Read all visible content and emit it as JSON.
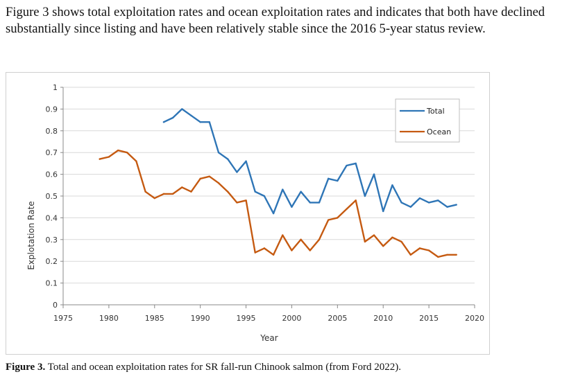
{
  "intro_text": "Figure 3 shows total exploitation rates and ocean exploitation rates and indicates that both have declined substantially since listing and have been relatively stable since the 2016 5-year status review.",
  "caption": {
    "label": "Figure 3.",
    "text": " Total and ocean exploitation rates for SR fall-run Chinook salmon (from Ford 2022)."
  },
  "chart_data": {
    "type": "line",
    "title": "",
    "xlabel": "Year",
    "ylabel": "Explotation Rate",
    "xlim": [
      1975,
      2020
    ],
    "ylim": [
      0,
      1
    ],
    "xticks": [
      1975,
      1980,
      1985,
      1990,
      1995,
      2000,
      2005,
      2010,
      2015,
      2020
    ],
    "yticks": [
      0,
      0.1,
      0.2,
      0.3,
      0.4,
      0.5,
      0.6,
      0.7,
      0.8,
      0.9,
      1
    ],
    "ytick_labels": [
      "0",
      "0.1",
      "0.2",
      "0.3",
      "0.4",
      "0.5",
      "0.6",
      "0.7",
      "0.8",
      "0.9",
      "1"
    ],
    "grid": "horizontal",
    "legend_position": "top-right",
    "series": [
      {
        "name": "Total",
        "color": "#2e75b6",
        "x": [
          1986,
          1987,
          1988,
          1989,
          1990,
          1991,
          1992,
          1993,
          1994,
          1995,
          1996,
          1997,
          1998,
          1999,
          2000,
          2001,
          2002,
          2003,
          2004,
          2005,
          2006,
          2007,
          2008,
          2009,
          2010,
          2011,
          2012,
          2013,
          2014,
          2015,
          2016,
          2017,
          2018
        ],
        "values": [
          0.84,
          0.86,
          0.9,
          0.87,
          0.84,
          0.84,
          0.7,
          0.67,
          0.61,
          0.66,
          0.52,
          0.5,
          0.42,
          0.53,
          0.45,
          0.52,
          0.47,
          0.47,
          0.58,
          0.57,
          0.64,
          0.65,
          0.5,
          0.6,
          0.43,
          0.55,
          0.47,
          0.45,
          0.49,
          0.47,
          0.48,
          0.45,
          0.46
        ]
      },
      {
        "name": "Ocean",
        "color": "#c55a11",
        "x": [
          1979,
          1980,
          1981,
          1982,
          1983,
          1984,
          1985,
          1986,
          1987,
          1988,
          1989,
          1990,
          1991,
          1992,
          1993,
          1994,
          1995,
          1996,
          1997,
          1998,
          1999,
          2000,
          2001,
          2002,
          2003,
          2004,
          2005,
          2006,
          2007,
          2008,
          2009,
          2010,
          2011,
          2012,
          2013,
          2014,
          2015,
          2016,
          2017,
          2018
        ],
        "values": [
          0.67,
          0.68,
          0.71,
          0.7,
          0.66,
          0.52,
          0.49,
          0.51,
          0.51,
          0.54,
          0.52,
          0.58,
          0.59,
          0.56,
          0.52,
          0.47,
          0.48,
          0.24,
          0.26,
          0.23,
          0.32,
          0.25,
          0.3,
          0.25,
          0.3,
          0.39,
          0.4,
          0.44,
          0.48,
          0.29,
          0.32,
          0.27,
          0.31,
          0.29,
          0.23,
          0.26,
          0.25,
          0.22,
          0.23,
          0.23
        ]
      }
    ]
  }
}
